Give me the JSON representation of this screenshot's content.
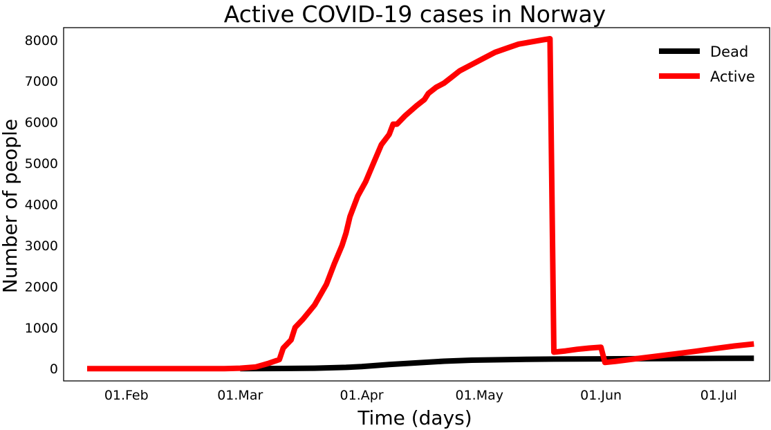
{
  "chart_data": {
    "type": "line",
    "title": "Active COVID-19 cases in Norway",
    "xlabel": "Time (days)",
    "ylabel": "Number of people",
    "x_start": "2020-01-22",
    "x_end": "2020-07-10",
    "xlim": [
      "2020-01-16",
      "2020-07-14"
    ],
    "ylim": [
      -300,
      8300
    ],
    "x_ticks": [
      {
        "date": "2020-02-01",
        "label": "01.Feb"
      },
      {
        "date": "2020-03-01",
        "label": "01.Mar"
      },
      {
        "date": "2020-04-01",
        "label": "01.Apr"
      },
      {
        "date": "2020-05-01",
        "label": "01.May"
      },
      {
        "date": "2020-06-01",
        "label": "01.Jun"
      },
      {
        "date": "2020-07-01",
        "label": "01.Jul"
      }
    ],
    "y_ticks": [
      0,
      1000,
      2000,
      3000,
      4000,
      5000,
      6000,
      7000,
      8000
    ],
    "grid": false,
    "legend_position": "top-right",
    "series": [
      {
        "name": "Dead",
        "color": "#000000",
        "points": [
          [
            "2020-03-01",
            0
          ],
          [
            "2020-03-12",
            3
          ],
          [
            "2020-03-20",
            10
          ],
          [
            "2020-03-28",
            30
          ],
          [
            "2020-04-01",
            50
          ],
          [
            "2020-04-08",
            100
          ],
          [
            "2020-04-15",
            140
          ],
          [
            "2020-04-22",
            180
          ],
          [
            "2020-04-29",
            205
          ],
          [
            "2020-05-06",
            215
          ],
          [
            "2020-05-13",
            225
          ],
          [
            "2020-05-20",
            232
          ],
          [
            "2020-06-01",
            237
          ],
          [
            "2020-06-15",
            242
          ],
          [
            "2020-07-01",
            248
          ],
          [
            "2020-07-10",
            251
          ]
        ]
      },
      {
        "name": "Active",
        "color": "#ff0000",
        "points": [
          [
            "2020-01-22",
            0
          ],
          [
            "2020-02-26",
            0
          ],
          [
            "2020-03-01",
            10
          ],
          [
            "2020-03-05",
            40
          ],
          [
            "2020-03-08",
            120
          ],
          [
            "2020-03-11",
            220
          ],
          [
            "2020-03-12",
            500
          ],
          [
            "2020-03-14",
            700
          ],
          [
            "2020-03-15",
            1000
          ],
          [
            "2020-03-17",
            1200
          ],
          [
            "2020-03-20",
            1550
          ],
          [
            "2020-03-23",
            2050
          ],
          [
            "2020-03-25",
            2550
          ],
          [
            "2020-03-27",
            3000
          ],
          [
            "2020-03-28",
            3300
          ],
          [
            "2020-03-29",
            3700
          ],
          [
            "2020-03-31",
            4200
          ],
          [
            "2020-04-02",
            4550
          ],
          [
            "2020-04-04",
            5000
          ],
          [
            "2020-04-06",
            5450
          ],
          [
            "2020-04-08",
            5700
          ],
          [
            "2020-04-09",
            5950
          ],
          [
            "2020-04-10",
            5950
          ],
          [
            "2020-04-12",
            6150
          ],
          [
            "2020-04-15",
            6400
          ],
          [
            "2020-04-17",
            6550
          ],
          [
            "2020-04-18",
            6700
          ],
          [
            "2020-04-20",
            6850
          ],
          [
            "2020-04-22",
            6950
          ],
          [
            "2020-04-24",
            7100
          ],
          [
            "2020-04-26",
            7250
          ],
          [
            "2020-04-29",
            7400
          ],
          [
            "2020-05-02",
            7550
          ],
          [
            "2020-05-05",
            7700
          ],
          [
            "2020-05-08",
            7800
          ],
          [
            "2020-05-11",
            7900
          ],
          [
            "2020-05-14",
            7950
          ],
          [
            "2020-05-17",
            8000
          ],
          [
            "2020-05-19",
            8030
          ],
          [
            "2020-05-20",
            400
          ],
          [
            "2020-05-23",
            430
          ],
          [
            "2020-05-26",
            470
          ],
          [
            "2020-05-29",
            500
          ],
          [
            "2020-06-01",
            520
          ],
          [
            "2020-06-02",
            150
          ],
          [
            "2020-06-05",
            180
          ],
          [
            "2020-06-10",
            240
          ],
          [
            "2020-06-15",
            300
          ],
          [
            "2020-06-20",
            360
          ],
          [
            "2020-06-25",
            420
          ],
          [
            "2020-07-01",
            500
          ],
          [
            "2020-07-05",
            550
          ],
          [
            "2020-07-10",
            600
          ]
        ]
      }
    ]
  }
}
